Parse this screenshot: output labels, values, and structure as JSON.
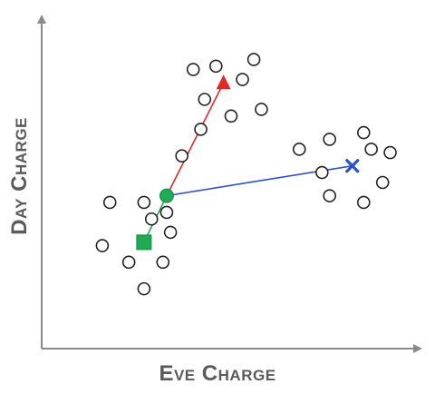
{
  "labels": {
    "x_axis": "Eve Charge",
    "y_axis": "Day Charge"
  },
  "colors": {
    "axis": "#8a8a8a",
    "point": "#222222",
    "red": "#e32626",
    "blue": "#2b4fd0",
    "green": "#1fab54"
  },
  "chart_data": {
    "type": "scatter",
    "xlabel": "Eve Charge",
    "ylabel": "Day Charge",
    "xlim": [
      0,
      100
    ],
    "ylim": [
      0,
      100
    ],
    "points": [
      [
        37.0,
        58.0
      ],
      [
        18.0,
        44.0
      ],
      [
        27.0,
        44.0
      ],
      [
        33.0,
        41.0
      ],
      [
        29.0,
        39.0
      ],
      [
        34.0,
        35.0
      ],
      [
        16.0,
        31.0
      ],
      [
        23.0,
        26.0
      ],
      [
        32.0,
        26.0
      ],
      [
        27.0,
        18.0
      ],
      [
        40.0,
        84.0
      ],
      [
        46.0,
        85.0
      ],
      [
        56.0,
        87.0
      ],
      [
        53.0,
        81.0
      ],
      [
        43.0,
        75.0
      ],
      [
        50.0,
        70.0
      ],
      [
        58.0,
        72.0
      ],
      [
        42.0,
        66.0
      ],
      [
        68.0,
        60.0
      ],
      [
        76.0,
        63.0
      ],
      [
        85.0,
        65.0
      ],
      [
        87.0,
        60.0
      ],
      [
        92.0,
        59.0
      ],
      [
        74.0,
        53.0
      ],
      [
        90.0,
        50.0
      ],
      [
        76.0,
        46.0
      ],
      [
        85.0,
        44.0
      ]
    ],
    "centroids": [
      {
        "name": "green-circle",
        "marker": "circle",
        "color": "#1fab54",
        "x": 33.0,
        "y": 46.0
      },
      {
        "name": "green-square",
        "marker": "square",
        "color": "#1fab54",
        "x": 27.0,
        "y": 32.0
      },
      {
        "name": "red-triangle",
        "marker": "triangle",
        "color": "#e32626",
        "x": 48.0,
        "y": 80.0
      },
      {
        "name": "blue-x",
        "marker": "x",
        "color": "#2b4fd0",
        "x": 82.0,
        "y": 55.0
      }
    ],
    "links": [
      {
        "from": "green-circle",
        "to": "red-triangle",
        "color": "#e32626"
      },
      {
        "from": "green-circle",
        "to": "blue-x",
        "color": "#2b4fd0"
      },
      {
        "from": "green-circle",
        "to": "green-square",
        "color": "#1fab54"
      }
    ]
  }
}
